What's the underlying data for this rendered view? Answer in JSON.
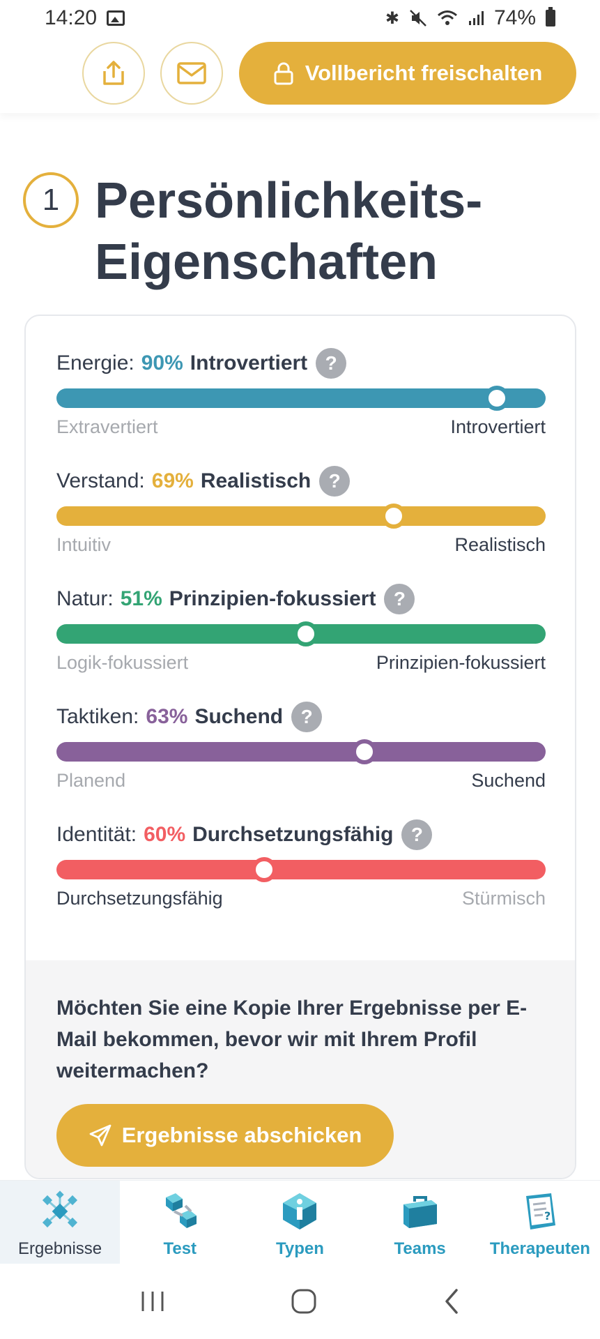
{
  "status_bar": {
    "time": "14:20",
    "battery": "74%"
  },
  "header": {
    "unlock_label": "Vollbericht freischalten"
  },
  "section": {
    "number": "1",
    "title_line1": "Persönlichkeits-",
    "title_line2": "Eigenschaften"
  },
  "traits": [
    {
      "label": "Energie:",
      "percent_text": "90%",
      "result": "Introvertiert",
      "left_pole": "Extravertiert",
      "right_pole": "Introvertiert",
      "color": "#3d97b3",
      "marker_position": 0.9,
      "highlight": "right"
    },
    {
      "label": "Verstand:",
      "percent_text": "69%",
      "result": "Realistisch",
      "left_pole": "Intuitiv",
      "right_pole": "Realistisch",
      "color": "#e4b03c",
      "marker_position": 0.69,
      "highlight": "right"
    },
    {
      "label": "Natur:",
      "percent_text": "51%",
      "result": "Prinzipien-fokussiert",
      "left_pole": "Logik-fokussiert",
      "right_pole": "Prinzipien-fokussiert",
      "color": "#33a474",
      "marker_position": 0.51,
      "highlight": "right"
    },
    {
      "label": "Taktiken:",
      "percent_text": "63%",
      "result": "Suchend",
      "left_pole": "Planend",
      "right_pole": "Suchend",
      "color": "#88619a",
      "marker_position": 0.63,
      "highlight": "right"
    },
    {
      "label": "Identität:",
      "percent_text": "60%",
      "result": "Durchsetzungsfähig",
      "left_pole": "Durchsetzungsfähig",
      "right_pole": "Stürmisch",
      "color": "#f25e62",
      "marker_position": 0.4,
      "highlight": "left"
    }
  ],
  "email_prompt": {
    "text": "Möchten Sie eine Kopie Ihrer Ergebnisse per E-Mail bekommen, bevor wir mit Ihrem Profil weitermachen?",
    "button_label": "Ergebnisse abschicken"
  },
  "bottom_nav": {
    "items": [
      {
        "label": "Ergebnisse",
        "active": true
      },
      {
        "label": "Test",
        "active": false
      },
      {
        "label": "Typen",
        "active": false
      },
      {
        "label": "Teams",
        "active": false
      },
      {
        "label": "Therapeuten",
        "active": false
      }
    ]
  }
}
